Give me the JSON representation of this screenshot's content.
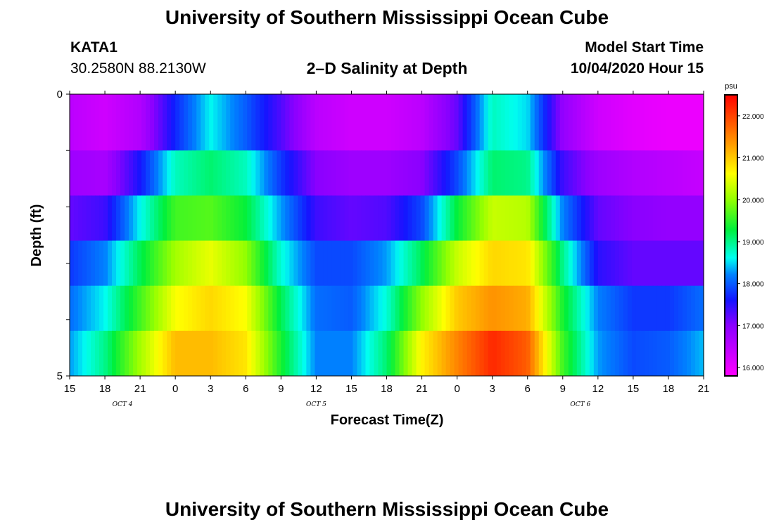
{
  "header": {
    "title_top": "University of Southern Mississippi Ocean Cube",
    "title_bottom": "University of Southern Mississippi Ocean Cube",
    "station": "KATA1",
    "coords": "30.2580N 88.2130W",
    "chart_title": "2–D Salinity at Depth",
    "model_label": "Model Start Time",
    "model_time": "10/04/2020 Hour 15"
  },
  "chart_data": {
    "type": "heatmap",
    "title": "2–D Salinity at Depth",
    "xlabel": "Forecast Time(Z)",
    "ylabel": "Depth (ft)",
    "x_tick_labels": [
      "15",
      "18",
      "21",
      "0",
      "3",
      "6",
      "9",
      "12",
      "15",
      "18",
      "21",
      "0",
      "3",
      "6",
      "9",
      "12",
      "15",
      "18",
      "21"
    ],
    "date_labels": [
      "OCT 4",
      "OCT 5",
      "OCT 6"
    ],
    "y_tick_labels": [
      "0",
      "5"
    ],
    "ylim": [
      0,
      5
    ],
    "x_hours_from_start": [
      0,
      54
    ],
    "colorbar": {
      "unit": "psu",
      "range": [
        15.8,
        22.5
      ],
      "tick_labels": [
        "16.000",
        "17.000",
        "18.000",
        "19.000",
        "20.000",
        "21.000",
        "22.000"
      ],
      "tick_values": [
        16,
        17,
        18,
        19,
        20,
        21,
        22
      ]
    },
    "depth_layers": [
      0,
      1,
      2,
      3,
      4,
      5
    ],
    "time_hours": [
      0,
      3,
      6,
      9,
      12,
      15,
      18,
      21,
      24,
      27,
      30,
      33,
      36,
      39,
      42,
      45,
      48,
      51,
      54
    ],
    "layer_values": [
      [
        16.5,
        16.3,
        16.6,
        17.7,
        18.6,
        18.0,
        17.3,
        16.5,
        16.3,
        16.3,
        16.5,
        17.2,
        18.8,
        18.5,
        16.9,
        16.3,
        16.1,
        16.0,
        16.0
      ],
      [
        16.8,
        16.7,
        17.6,
        18.8,
        19.1,
        18.8,
        17.8,
        17.0,
        16.8,
        16.8,
        17.0,
        17.9,
        19.1,
        19.0,
        17.4,
        16.8,
        16.6,
        16.5,
        16.4
      ],
      [
        17.2,
        17.4,
        18.6,
        19.6,
        19.7,
        19.3,
        18.3,
        17.4,
        17.2,
        17.3,
        17.9,
        19.3,
        20.3,
        20.2,
        18.2,
        17.2,
        17.0,
        16.9,
        16.9
      ],
      [
        17.8,
        18.2,
        19.2,
        20.1,
        20.5,
        20.0,
        18.7,
        17.9,
        17.9,
        18.3,
        19.2,
        20.3,
        20.9,
        20.8,
        19.0,
        17.5,
        17.2,
        17.2,
        17.2
      ],
      [
        18.1,
        18.6,
        19.6,
        20.6,
        20.9,
        20.6,
        19.2,
        18.1,
        18.0,
        18.7,
        20.0,
        21.0,
        21.4,
        21.2,
        19.4,
        18.2,
        17.8,
        17.8,
        18.1
      ],
      [
        18.3,
        19.0,
        20.1,
        21.1,
        21.1,
        20.8,
        19.4,
        18.2,
        18.2,
        19.1,
        20.7,
        21.5,
        22.2,
        21.8,
        19.6,
        18.3,
        17.9,
        18.0,
        18.4
      ]
    ]
  }
}
